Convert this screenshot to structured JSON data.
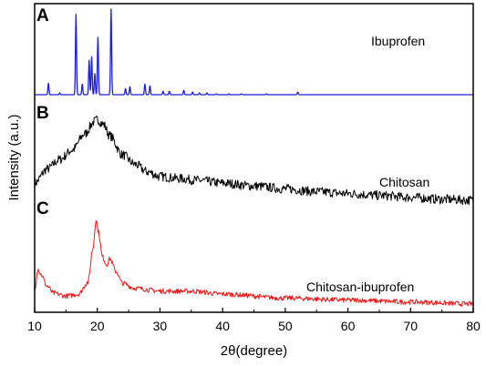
{
  "chart_data": {
    "type": "line",
    "xlabel": "2θ(degree)",
    "ylabel": "Intensity (a.u.)",
    "xlim": [
      10,
      80
    ],
    "xticks": [
      10,
      20,
      30,
      40,
      50,
      60,
      70,
      80
    ],
    "y_tick_labels": "none",
    "grid": false,
    "panels": [
      {
        "letter": "A",
        "name": "Ibuprofen",
        "color": "#1f1fd6",
        "ylim": [
          0,
          100
        ],
        "baseline": 1,
        "peaks": [
          {
            "x": 12.2,
            "y": 14
          },
          {
            "x": 14.0,
            "y": 3
          },
          {
            "x": 16.6,
            "y": 92
          },
          {
            "x": 17.6,
            "y": 13
          },
          {
            "x": 18.7,
            "y": 40
          },
          {
            "x": 19.1,
            "y": 44
          },
          {
            "x": 19.6,
            "y": 25
          },
          {
            "x": 20.1,
            "y": 66
          },
          {
            "x": 22.2,
            "y": 98
          },
          {
            "x": 24.5,
            "y": 8
          },
          {
            "x": 25.2,
            "y": 10
          },
          {
            "x": 27.6,
            "y": 13
          },
          {
            "x": 28.4,
            "y": 11
          },
          {
            "x": 30.5,
            "y": 5
          },
          {
            "x": 31.5,
            "y": 5
          },
          {
            "x": 33.8,
            "y": 6
          },
          {
            "x": 35.2,
            "y": 4
          },
          {
            "x": 36.3,
            "y": 3
          },
          {
            "x": 37.5,
            "y": 3
          },
          {
            "x": 39.0,
            "y": 2
          },
          {
            "x": 41.0,
            "y": 2
          },
          {
            "x": 43.0,
            "y": 2
          },
          {
            "x": 47.0,
            "y": 2
          },
          {
            "x": 52.0,
            "y": 4
          }
        ]
      },
      {
        "letter": "B",
        "name": "Chitosan",
        "color": "#000000",
        "ylim": [
          0,
          100
        ],
        "points": [
          [
            10,
            20
          ],
          [
            12,
            35
          ],
          [
            14,
            45
          ],
          [
            16,
            55
          ],
          [
            18,
            72
          ],
          [
            19.5,
            85
          ],
          [
            20,
            87
          ],
          [
            21,
            82
          ],
          [
            22,
            70
          ],
          [
            24,
            50
          ],
          [
            26,
            40
          ],
          [
            28,
            32
          ],
          [
            30,
            27
          ],
          [
            33,
            25
          ],
          [
            36,
            23
          ],
          [
            40,
            20
          ],
          [
            45,
            17
          ],
          [
            50,
            14
          ],
          [
            55,
            11
          ],
          [
            60,
            9
          ],
          [
            65,
            7
          ],
          [
            70,
            5
          ],
          [
            75,
            3
          ],
          [
            80,
            2
          ]
        ],
        "noise": 5
      },
      {
        "letter": "C",
        "name": "Chitosan-ibuprofen",
        "color": "#e81a1a",
        "ylim": [
          0,
          100
        ],
        "points": [
          [
            10,
            15
          ],
          [
            10.5,
            38
          ],
          [
            11,
            32
          ],
          [
            12,
            20
          ],
          [
            13,
            13
          ],
          [
            15,
            10
          ],
          [
            17,
            12
          ],
          [
            18.5,
            24
          ],
          [
            19.3,
            58
          ],
          [
            19.8,
            88
          ],
          [
            20.2,
            75
          ],
          [
            20.8,
            50
          ],
          [
            21.5,
            42
          ],
          [
            22,
            48
          ],
          [
            23,
            35
          ],
          [
            24,
            23
          ],
          [
            26,
            18
          ],
          [
            30,
            15
          ],
          [
            35,
            15
          ],
          [
            40,
            12
          ],
          [
            50,
            8
          ],
          [
            60,
            6
          ],
          [
            70,
            4
          ],
          [
            80,
            2
          ]
        ],
        "noise": 2.5
      }
    ]
  }
}
